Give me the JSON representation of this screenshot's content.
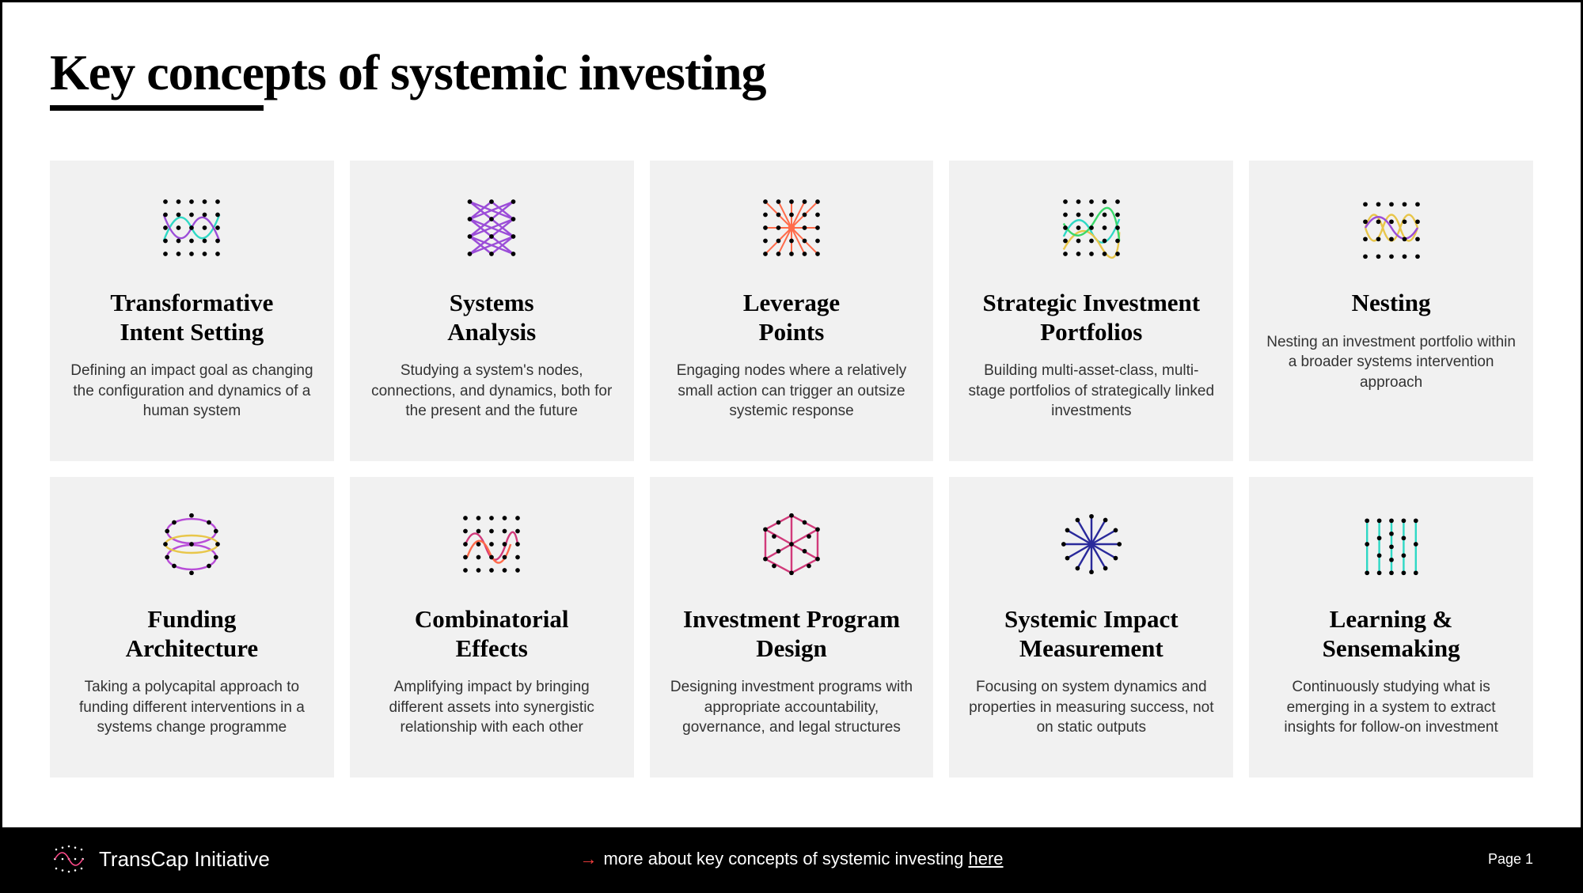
{
  "title_underlined": "Key conce",
  "title_rest": "pts of systemic investing",
  "colors": {
    "card_bg": "#f1f1f1",
    "footer_bg": "#000000",
    "arrow": "#ff4040"
  },
  "cards": [
    {
      "icon": "transformative",
      "title": "Transformative\nIntent Setting",
      "desc": "Defining an impact goal as changing the configuration and dynamics of a human system"
    },
    {
      "icon": "systems-analysis",
      "title": "Systems\nAnalysis",
      "desc": "Studying a system's nodes, connections, and dynamics, both for the present and the future"
    },
    {
      "icon": "leverage",
      "title": "Leverage\nPoints",
      "desc": "Engaging nodes where a relatively small action can trigger an outsize systemic response"
    },
    {
      "icon": "portfolios",
      "title": "Strategic Investment\nPortfolios",
      "desc": "Building multi-asset-class, multi-stage portfolios of strategically linked investments"
    },
    {
      "icon": "nesting",
      "title": "Nesting",
      "desc": "Nesting an investment portfolio within a broader systems intervention approach"
    },
    {
      "icon": "funding",
      "title": "Funding\nArchitecture",
      "desc": "Taking a polycapital approach to funding different interventions in a systems change programme"
    },
    {
      "icon": "combinatorial",
      "title": "Combinatorial\nEffects",
      "desc": "Amplifying impact by bringing different assets into synergistic relationship with each other"
    },
    {
      "icon": "program-design",
      "title": "Investment Program\nDesign",
      "desc": "Designing investment programs with appropriate accountability, governance, and legal structures"
    },
    {
      "icon": "measurement",
      "title": "Systemic Impact\nMeasurement",
      "desc": "Focusing on system dynamics and properties in measuring success, not on static outputs"
    },
    {
      "icon": "learning",
      "title": "Learning &\nSensemaking",
      "desc": "Continuously studying what is emerging in a system to extract insights for follow-on investment"
    }
  ],
  "footer": {
    "brand": "TransCap Initiative",
    "center_pre": "more about key concepts of systemic investing ",
    "center_link": "here",
    "page": "Page 1"
  },
  "icon_styles": {
    "dot_color": "#000000",
    "dot_r": 2.6,
    "stroke_w": 2.2,
    "transformative": {
      "line1": "#2fd8c5",
      "line2": "#9b4dd8"
    },
    "systems-analysis": {
      "stroke": "#9b4dd8"
    },
    "leverage": {
      "stroke": "#ff6b4a"
    },
    "portfolios": {
      "line1": "#2fd8c5",
      "line2": "#e8c64a",
      "line3": "#3bd86a"
    },
    "nesting": {
      "line1": "#e8c64a",
      "line2": "#9b4dd8"
    },
    "funding": {
      "line1": "#e8c64a",
      "line2": "#b84dd8"
    },
    "combinatorial": {
      "line1": "#ff6b4a",
      "line2": "#d13a7a"
    },
    "program-design": {
      "stroke": "#d13a7a"
    },
    "measurement": {
      "stroke": "#2a2a9b"
    },
    "learning": {
      "stroke": "#2fd8c5"
    }
  }
}
